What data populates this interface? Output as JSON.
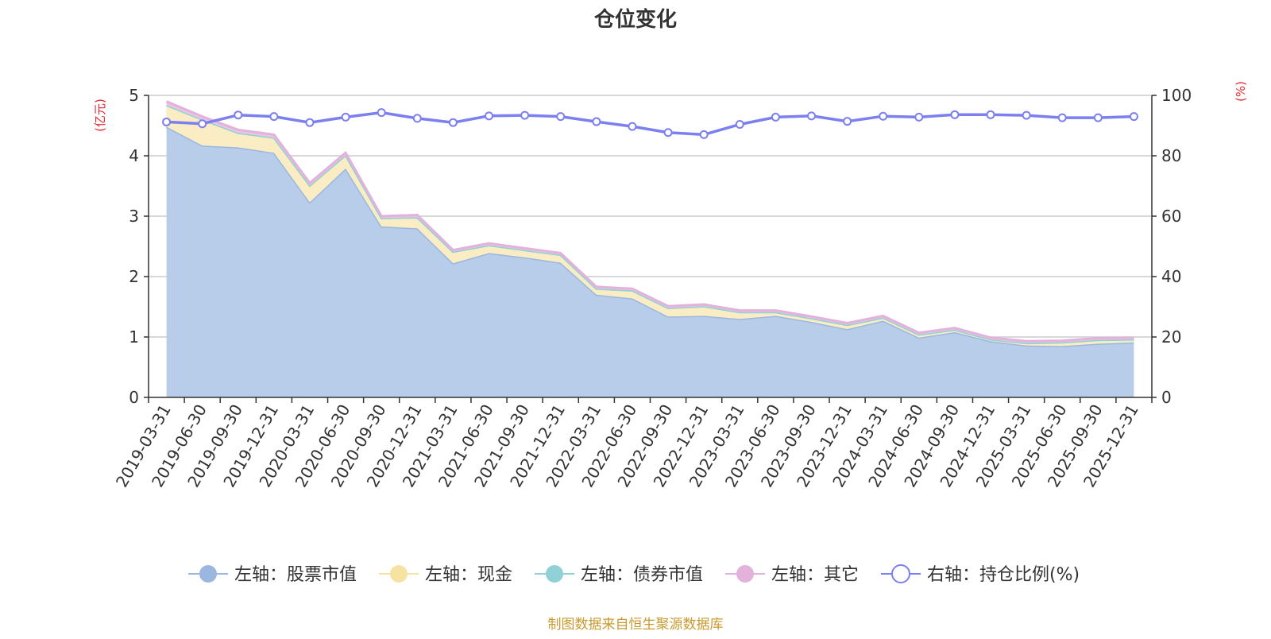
{
  "chart_data": {
    "type": "area",
    "title": "仓位变化",
    "left_axis_unit": "(亿元)",
    "right_axis_unit": "(%)",
    "ylim_left": [
      0,
      5
    ],
    "ylim_right": [
      0,
      100
    ],
    "left_ticks": [
      "0",
      "1",
      "2",
      "3",
      "4",
      "5"
    ],
    "right_ticks": [
      "0",
      "20",
      "40",
      "60",
      "80",
      "100"
    ],
    "grid": true,
    "legend_position": "bottom",
    "categories": [
      "2019-03-31",
      "2019-06-30",
      "2019-09-30",
      "2019-12-31",
      "2020-03-31",
      "2020-06-30",
      "2020-09-30",
      "2020-12-31",
      "2021-03-31",
      "2021-06-30",
      "2021-09-30",
      "2021-12-31",
      "2022-03-31",
      "2022-06-30",
      "2022-09-30",
      "2022-12-31",
      "2023-03-31",
      "2023-06-30",
      "2023-09-30",
      "2023-12-31",
      "2024-03-31",
      "2024-06-30",
      "2024-09-30",
      "2024-12-31",
      "2025-03-31",
      "2025-06-30",
      "2025-09-30",
      "2025-12-31"
    ],
    "series": [
      {
        "name": "左轴：股票市值",
        "axis": "left",
        "kind": "stack",
        "color": "#9bb7e0",
        "fill": "#b8cdea",
        "values": [
          4.48,
          4.17,
          4.14,
          4.05,
          3.23,
          3.79,
          2.83,
          2.8,
          2.22,
          2.39,
          2.32,
          2.23,
          1.7,
          1.64,
          1.34,
          1.35,
          1.3,
          1.35,
          1.25,
          1.13,
          1.27,
          0.99,
          1.08,
          0.93,
          0.86,
          0.85,
          0.89,
          0.91
        ]
      },
      {
        "name": "左轴：现金",
        "axis": "left",
        "kind": "stack",
        "color": "#f7e3a1",
        "fill": "#faedc3",
        "values": [
          0.36,
          0.43,
          0.24,
          0.25,
          0.27,
          0.22,
          0.14,
          0.18,
          0.19,
          0.13,
          0.12,
          0.13,
          0.1,
          0.13,
          0.14,
          0.16,
          0.11,
          0.06,
          0.06,
          0.07,
          0.05,
          0.05,
          0.04,
          0.03,
          0.04,
          0.06,
          0.06,
          0.05
        ]
      },
      {
        "name": "左轴：债券市值",
        "axis": "left",
        "kind": "stack",
        "color": "#8fd1d6",
        "fill": "#a7dcdf",
        "values": [
          0,
          0,
          0,
          0,
          0.01,
          0,
          0,
          0,
          0,
          0,
          0,
          0,
          0,
          0,
          0,
          0,
          0,
          0,
          0,
          0,
          0,
          0,
          0,
          0,
          0,
          0,
          0,
          0
        ]
      },
      {
        "name": "左轴：其它",
        "axis": "left",
        "kind": "stack",
        "color": "#e3b2dc",
        "fill": "#eac6e4",
        "values": [
          0.06,
          0.05,
          0.05,
          0.05,
          0.04,
          0.04,
          0.03,
          0.04,
          0.03,
          0.03,
          0.03,
          0.03,
          0.03,
          0.03,
          0.03,
          0.03,
          0.03,
          0.03,
          0.03,
          0.03,
          0.03,
          0.03,
          0.03,
          0.03,
          0.03,
          0.03,
          0.03,
          0.03
        ]
      },
      {
        "name": "右轴：持仓比例(%)",
        "axis": "right",
        "kind": "line",
        "color": "#7b7ff0",
        "values": [
          91.2,
          90.6,
          93.5,
          93.0,
          91.0,
          92.8,
          94.3,
          92.4,
          91.0,
          93.2,
          93.4,
          93.0,
          91.3,
          89.7,
          87.7,
          87.0,
          90.4,
          92.8,
          93.2,
          91.4,
          93.1,
          92.8,
          93.6,
          93.6,
          93.4,
          92.6,
          92.6,
          93.0
        ]
      }
    ],
    "source_note": "制图数据来自恒生聚源数据库"
  }
}
